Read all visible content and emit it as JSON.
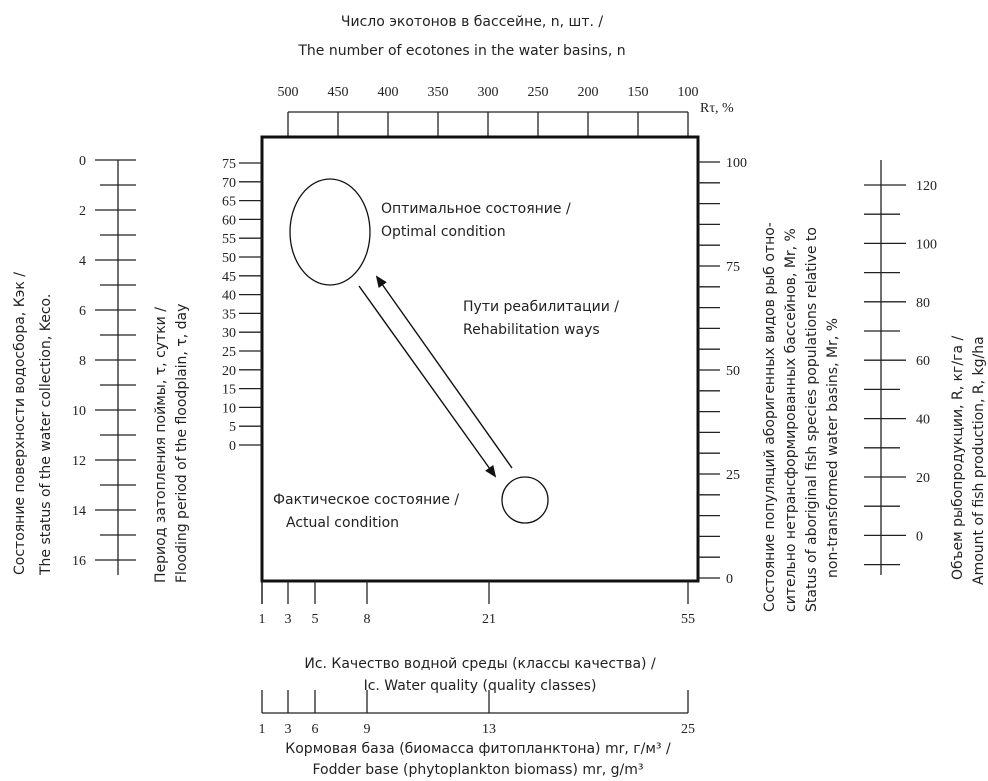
{
  "top_axis": {
    "title_ru": "Число экотонов в бассейне, n, шт. /",
    "title_en": "The number of ecotones in the water basins, n",
    "ticks": [
      "500",
      "450",
      "400",
      "350",
      "300",
      "250",
      "200",
      "150",
      "100"
    ],
    "r_label": "Rτ, %"
  },
  "left_outer_axis": {
    "title_ru": "Состояние поверхности водосбора, Кэк /",
    "title_en": "The status of the water collection, Keco.",
    "ticks": [
      "0",
      "2",
      "4",
      "6",
      "8",
      "10",
      "12",
      "14",
      "16"
    ]
  },
  "left_inner_axis": {
    "title_ru": "Период затопления поймы, τ, сутки /",
    "title_en": "Flooding period of the floodplain, τ, day",
    "ticks": [
      "75",
      "70",
      "65",
      "60",
      "55",
      "50",
      "45",
      "40",
      "35",
      "30",
      "25",
      "20",
      "15",
      "10",
      "5",
      "0"
    ]
  },
  "right_inner_axis": {
    "title_line1": "Состояние популяций аборигенных видов рыб отно-",
    "title_line2": "сительно нетрансформированных бассейнов,  Мr, %",
    "title_line3": "Status of aboriginal fish species populations relative to",
    "title_line4": "non-transformed water basins,  Mr, %",
    "ticks": [
      "100",
      "75",
      "50",
      "25",
      "0"
    ]
  },
  "right_outer_axis": {
    "title_ru": "Объем рыбопродукции, R, кг/га /",
    "title_en": "Amount of fish production, R, kg/ha",
    "ticks": [
      "120",
      "100",
      "80",
      "60",
      "40",
      "20",
      "0"
    ]
  },
  "bottom_axis": {
    "title_ru": "Ис. Качество водной среды (классы качества) /",
    "title_en": "Ic. Water quality (quality classes)",
    "ticks": [
      "1",
      "3",
      "5",
      "8",
      "21",
      "55"
    ]
  },
  "bottom2_axis": {
    "title_ru": "Кормовая база (биомасса фитопланктона) mr, г/м³ /",
    "title_en": "Fodder base (phytoplankton biomass) mr, g/m³",
    "ticks": [
      "1",
      "3",
      "6",
      "9",
      "13",
      "25"
    ]
  },
  "labels": {
    "optimal_ru": "Оптимальное состояние /",
    "optimal_en": "Optimal condition",
    "rehab_ru": "Пути реабилитации /",
    "rehab_en": "Rehabilitation ways",
    "actual_ru": "Фактическое состояние /",
    "actual_en": "Actual condition"
  }
}
